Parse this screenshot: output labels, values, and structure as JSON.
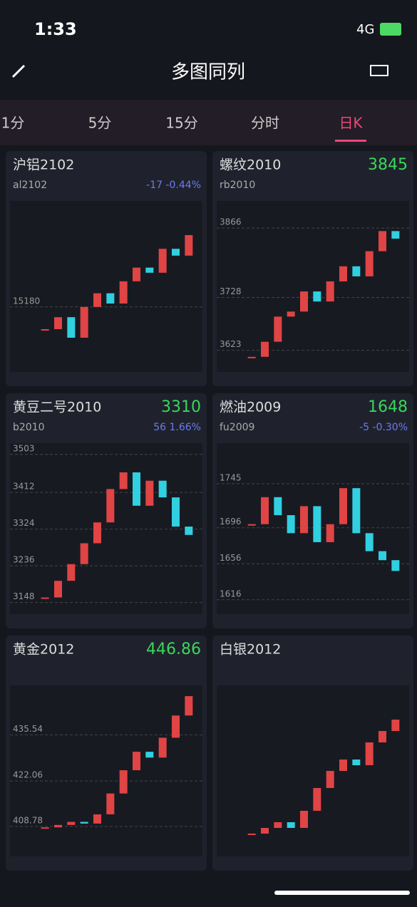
{
  "status": {
    "time": "1:33",
    "network": "4G"
  },
  "header": {
    "title": "多图同列"
  },
  "tabs": [
    "1分",
    "5分",
    "15分",
    "分时",
    "日K"
  ],
  "active_tab": 4,
  "panels": [
    {
      "name": "沪铝2102",
      "code": "al2102",
      "change": "-17 -0.44%",
      "ylim": [
        14800,
        15800
      ],
      "yticks": [
        15180
      ],
      "closes": [
        15050,
        15120,
        15000,
        15180,
        15260,
        15200,
        15330,
        15410,
        15380,
        15520,
        15480,
        15600
      ]
    },
    {
      "name": "螺纹2010",
      "price": "3845",
      "code": "rb2010",
      "ylim": [
        3580,
        3920
      ],
      "yticks": [
        3866,
        3728,
        3623
      ],
      "closes": [
        3610,
        3640,
        3690,
        3700,
        3740,
        3720,
        3760,
        3790,
        3770,
        3820,
        3860,
        3845
      ]
    },
    {
      "name": "黄豆二号2010",
      "price": "3310",
      "code": "b2010",
      "change": "56 1.66%",
      "ylim": [
        3120,
        3530
      ],
      "yticks": [
        3503,
        3412,
        3324,
        3236,
        3148
      ],
      "closes": [
        3160,
        3200,
        3240,
        3290,
        3340,
        3420,
        3460,
        3380,
        3440,
        3400,
        3330,
        3310
      ]
    },
    {
      "name": "燃油2009",
      "price": "1648",
      "code": "fu2009",
      "change": "-5 -0.30%",
      "ylim": [
        1600,
        1790
      ],
      "yticks": [
        1745,
        1696,
        1656,
        1616
      ],
      "closes": [
        1700,
        1730,
        1710,
        1690,
        1720,
        1680,
        1700,
        1740,
        1690,
        1670,
        1660,
        1648
      ]
    },
    {
      "name": "黄金2012",
      "price": "446.86",
      "ylim": [
        400,
        450
      ],
      "yticks": [
        435.54,
        422.06,
        408.78
      ],
      "closes": [
        408.5,
        409.2,
        410.1,
        409.6,
        412.3,
        418.4,
        425.2,
        430.6,
        428.9,
        434.7,
        441.2,
        446.86
      ]
    },
    {
      "name": "白银2012",
      "ylim": [
        40,
        70
      ],
      "closes": [
        44,
        45,
        46,
        45,
        48,
        52,
        55,
        57,
        56,
        60,
        62,
        64
      ]
    }
  ]
}
